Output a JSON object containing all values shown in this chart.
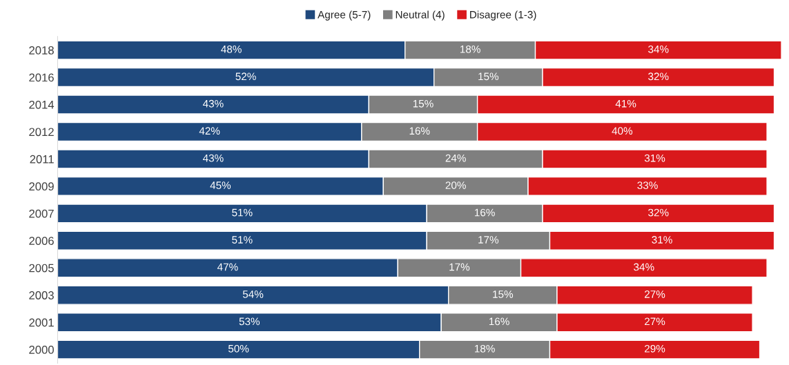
{
  "chart_data": {
    "type": "bar",
    "orientation": "horizontal",
    "stacked": true,
    "legend": "top",
    "grid": false,
    "categories": [
      "2018",
      "2016",
      "2014",
      "2012",
      "2011",
      "2009",
      "2007",
      "2006",
      "2005",
      "2003",
      "2001",
      "2000"
    ],
    "series": [
      {
        "name": "Agree (5-7)",
        "color": "#1f497d",
        "values": [
          48,
          52,
          43,
          42,
          43,
          45,
          51,
          51,
          47,
          54,
          53,
          50
        ],
        "value_labels": [
          "48%",
          "52%",
          "43%",
          "42%",
          "43%",
          "45%",
          "51%",
          "51%",
          "47%",
          "54%",
          "53%",
          "50%"
        ]
      },
      {
        "name": "Neutral (4)",
        "color": "#7f7f7f",
        "values": [
          18,
          15,
          15,
          16,
          24,
          20,
          16,
          17,
          17,
          15,
          16,
          18
        ],
        "value_labels": [
          "18%",
          "15%",
          "15%",
          "16%",
          "24%",
          "20%",
          "16%",
          "17%",
          "17%",
          "15%",
          "16%",
          "18%"
        ]
      },
      {
        "name": "Disagree (1-3)",
        "color": "#d9191c",
        "values": [
          34,
          32,
          41,
          40,
          31,
          33,
          32,
          31,
          34,
          27,
          27,
          29
        ],
        "value_labels": [
          "34%",
          "32%",
          "41%",
          "40%",
          "31%",
          "33%",
          "32%",
          "31%",
          "34%",
          "27%",
          "27%",
          "29%"
        ]
      }
    ]
  }
}
